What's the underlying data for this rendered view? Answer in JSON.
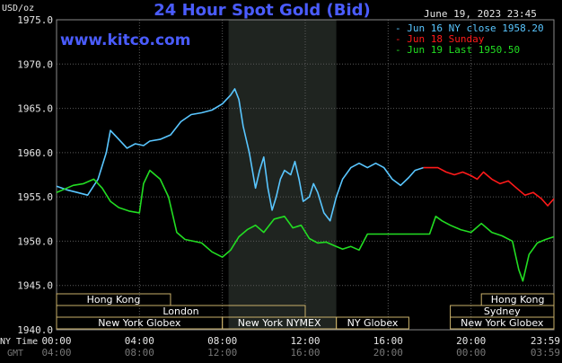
{
  "header": {
    "title": "24 Hour Spot Gold (Bid)",
    "timestamp": "June 19, 2023 23:45",
    "unit_label": "USD/oz",
    "watermark": "www.kitco.com"
  },
  "legend": [
    {
      "text": "- Jun 16 NY close 1958.20",
      "color": "#59c6ff"
    },
    {
      "text": "- Jun 18 Sunday",
      "color": "#ff1a1a"
    },
    {
      "text": "- Jun 19 Last 1950.50",
      "color": "#22dd22"
    }
  ],
  "axis_footer": {
    "ny_time_label": "NY Time",
    "gmt_label": "GMT"
  },
  "markets": [
    {
      "name": "Hong Kong",
      "row": 1,
      "start_h": 0,
      "end_h": 5.5
    },
    {
      "name": "Hong Kong",
      "row": 1,
      "start_h": 20.5,
      "end_h": 24
    },
    {
      "name": "London",
      "row": 2,
      "start_h": 0,
      "end_h": 12
    },
    {
      "name": "Sydney",
      "row": 2,
      "start_h": 19,
      "end_h": 24
    },
    {
      "name": "New York Globex",
      "row": 3,
      "start_h": 0,
      "end_h": 8
    },
    {
      "name": "New York NYMEX",
      "row": 3,
      "start_h": 8,
      "end_h": 13.5
    },
    {
      "name": "NY Globex",
      "row": 3,
      "start_h": 13.5,
      "end_h": 17
    },
    {
      "name": "New York Globex",
      "row": 3,
      "start_h": 19,
      "end_h": 24
    }
  ],
  "chart_data": {
    "type": "line",
    "title": "24 Hour Spot Gold (Bid)",
    "ylabel": "USD/oz",
    "ylim": [
      1940,
      1975
    ],
    "xlim_hours": [
      0,
      24
    ],
    "grid": true,
    "y_ticks": [
      "1940.0",
      "1945.0",
      "1950.0",
      "1955.0",
      "1960.0",
      "1965.0",
      "1970.0",
      "1975.0"
    ],
    "x_ticks": [
      {
        "h": 0,
        "ny": "00:00",
        "gmt": "04:00"
      },
      {
        "h": 4,
        "ny": "04:00",
        "gmt": "08:00"
      },
      {
        "h": 8,
        "ny": "08:00",
        "gmt": "12:00"
      },
      {
        "h": 12,
        "ny": "12:00",
        "gmt": "16:00"
      },
      {
        "h": 16,
        "ny": "16:00",
        "gmt": "20:00"
      },
      {
        "h": 20,
        "ny": "20:00",
        "gmt": "00:00"
      },
      {
        "h": 24,
        "ny": "23:59",
        "gmt": "03:59"
      }
    ],
    "nymex_hours": [
      8.3,
      13.5
    ],
    "series": [
      {
        "name": "Jun 16 NY close 1958.20",
        "color": "#59c6ff",
        "points": [
          [
            0,
            1956.2
          ],
          [
            0.5,
            1955.8
          ],
          [
            1,
            1955.5
          ],
          [
            1.5,
            1955.2
          ],
          [
            2,
            1957.0
          ],
          [
            2.4,
            1960.0
          ],
          [
            2.6,
            1962.5
          ],
          [
            3,
            1961.5
          ],
          [
            3.4,
            1960.5
          ],
          [
            3.8,
            1961.0
          ],
          [
            4.2,
            1960.8
          ],
          [
            4.5,
            1961.3
          ],
          [
            5,
            1961.5
          ],
          [
            5.5,
            1962.0
          ],
          [
            6,
            1963.5
          ],
          [
            6.5,
            1964.3
          ],
          [
            7,
            1964.5
          ],
          [
            7.5,
            1964.8
          ],
          [
            8,
            1965.5
          ],
          [
            8.4,
            1966.5
          ],
          [
            8.6,
            1967.2
          ],
          [
            8.8,
            1966.0
          ],
          [
            9,
            1963.0
          ],
          [
            9.3,
            1960.0
          ],
          [
            9.6,
            1956.0
          ],
          [
            9.8,
            1958.0
          ],
          [
            10,
            1959.5
          ],
          [
            10.2,
            1956.0
          ],
          [
            10.4,
            1953.5
          ],
          [
            10.6,
            1955.0
          ],
          [
            10.8,
            1957.0
          ],
          [
            11,
            1958.0
          ],
          [
            11.3,
            1957.5
          ],
          [
            11.5,
            1959.0
          ],
          [
            11.7,
            1957.0
          ],
          [
            11.9,
            1954.5
          ],
          [
            12.2,
            1955.0
          ],
          [
            12.4,
            1956.5
          ],
          [
            12.6,
            1955.5
          ],
          [
            12.9,
            1953.2
          ],
          [
            13.2,
            1952.3
          ],
          [
            13.5,
            1955.0
          ],
          [
            13.8,
            1957.0
          ],
          [
            14.2,
            1958.3
          ],
          [
            14.6,
            1958.8
          ],
          [
            15,
            1958.3
          ],
          [
            15.4,
            1958.8
          ],
          [
            15.8,
            1958.3
          ],
          [
            16.2,
            1957.0
          ],
          [
            16.6,
            1956.3
          ],
          [
            17,
            1957.2
          ],
          [
            17.3,
            1958.0
          ],
          [
            17.7,
            1958.3
          ]
        ]
      },
      {
        "name": "Jun 18 Sunday",
        "color": "#ff1a1a",
        "points": [
          [
            17.7,
            1958.3
          ],
          [
            18.4,
            1958.3
          ],
          [
            18.8,
            1957.8
          ],
          [
            19.2,
            1957.5
          ],
          [
            19.6,
            1957.8
          ],
          [
            20,
            1957.4
          ],
          [
            20.3,
            1957.0
          ],
          [
            20.6,
            1957.8
          ],
          [
            21,
            1957.0
          ],
          [
            21.4,
            1956.5
          ],
          [
            21.8,
            1956.8
          ],
          [
            22.2,
            1956.0
          ],
          [
            22.6,
            1955.2
          ],
          [
            23,
            1955.5
          ],
          [
            23.4,
            1954.8
          ],
          [
            23.7,
            1954.0
          ],
          [
            24,
            1954.8
          ]
        ]
      },
      {
        "name": "Jun 19 Last 1950.50",
        "color": "#22dd22",
        "points": [
          [
            0,
            1955.5
          ],
          [
            0.3,
            1955.8
          ],
          [
            0.8,
            1956.3
          ],
          [
            1.3,
            1956.5
          ],
          [
            1.8,
            1957.0
          ],
          [
            2.2,
            1956.0
          ],
          [
            2.6,
            1954.5
          ],
          [
            3,
            1953.8
          ],
          [
            3.5,
            1953.4
          ],
          [
            4,
            1953.2
          ],
          [
            4.2,
            1956.5
          ],
          [
            4.5,
            1958.0
          ],
          [
            5,
            1957.0
          ],
          [
            5.4,
            1955.0
          ],
          [
            5.8,
            1951.0
          ],
          [
            6.2,
            1950.2
          ],
          [
            6.6,
            1950.0
          ],
          [
            7,
            1949.8
          ],
          [
            7.5,
            1948.8
          ],
          [
            8,
            1948.2
          ],
          [
            8.4,
            1949.0
          ],
          [
            8.8,
            1950.5
          ],
          [
            9.2,
            1951.3
          ],
          [
            9.6,
            1951.8
          ],
          [
            10,
            1951.0
          ],
          [
            10.5,
            1952.5
          ],
          [
            11,
            1952.8
          ],
          [
            11.4,
            1951.5
          ],
          [
            11.8,
            1951.8
          ],
          [
            12.2,
            1950.3
          ],
          [
            12.6,
            1949.8
          ],
          [
            13,
            1949.9
          ],
          [
            13.4,
            1949.5
          ],
          [
            13.8,
            1949.1
          ],
          [
            14.2,
            1949.4
          ],
          [
            14.6,
            1949.0
          ],
          [
            15,
            1950.8
          ],
          [
            15.5,
            1950.8
          ],
          [
            16,
            1950.8
          ],
          [
            16.5,
            1950.8
          ],
          [
            17,
            1950.8
          ],
          [
            17.5,
            1950.8
          ],
          [
            18,
            1950.8
          ],
          [
            18.3,
            1952.8
          ],
          [
            18.6,
            1952.3
          ],
          [
            19,
            1951.8
          ],
          [
            19.5,
            1951.3
          ],
          [
            20,
            1951.0
          ],
          [
            20.5,
            1952.0
          ],
          [
            21,
            1951.0
          ],
          [
            21.5,
            1950.6
          ],
          [
            22,
            1950.0
          ],
          [
            22.3,
            1946.8
          ],
          [
            22.5,
            1945.5
          ],
          [
            22.8,
            1948.5
          ],
          [
            23.2,
            1949.8
          ],
          [
            23.6,
            1950.2
          ],
          [
            24,
            1950.5
          ]
        ]
      }
    ]
  }
}
